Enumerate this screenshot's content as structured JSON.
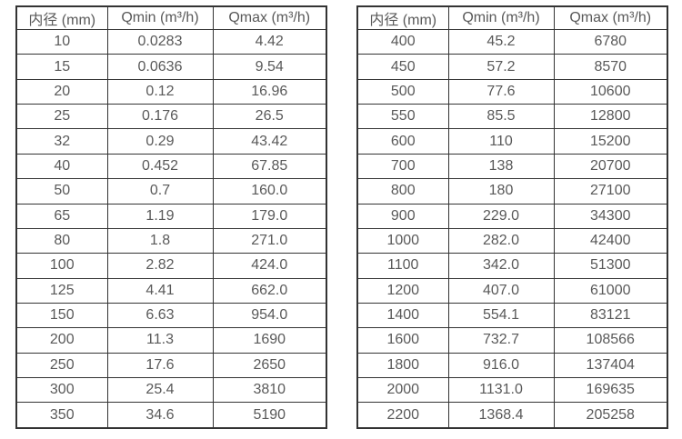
{
  "page": {
    "background": "#ffffff",
    "table_border_color": "#333333",
    "text_color": "#595959"
  },
  "chart_data": [
    {
      "type": "table",
      "title": "",
      "columns": [
        "内径 (mm)",
        "Qmin (m³/h)",
        "Qmax (m³/h)"
      ],
      "rows": [
        [
          "10",
          "0.0283",
          "4.42"
        ],
        [
          "15",
          "0.0636",
          "9.54"
        ],
        [
          "20",
          "0.12",
          "16.96"
        ],
        [
          "25",
          "0.176",
          "26.5"
        ],
        [
          "32",
          "0.29",
          "43.42"
        ],
        [
          "40",
          "0.452",
          "67.85"
        ],
        [
          "50",
          "0.7",
          "160.0"
        ],
        [
          "65",
          "1.19",
          "179.0"
        ],
        [
          "80",
          "1.8",
          "271.0"
        ],
        [
          "100",
          "2.82",
          "424.0"
        ],
        [
          "125",
          "4.41",
          "662.0"
        ],
        [
          "150",
          "6.63",
          "954.0"
        ],
        [
          "200",
          "11.3",
          "1690"
        ],
        [
          "250",
          "17.6",
          "2650"
        ],
        [
          "300",
          "25.4",
          "3810"
        ],
        [
          "350",
          "34.6",
          "5190"
        ]
      ]
    },
    {
      "type": "table",
      "title": "",
      "columns": [
        "内径 (mm)",
        "Qmin (m³/h)",
        "Qmax (m³/h)"
      ],
      "rows": [
        [
          "400",
          "45.2",
          "6780"
        ],
        [
          "450",
          "57.2",
          "8570"
        ],
        [
          "500",
          "77.6",
          "10600"
        ],
        [
          "550",
          "85.5",
          "12800"
        ],
        [
          "600",
          "110",
          "15200"
        ],
        [
          "700",
          "138",
          "20700"
        ],
        [
          "800",
          "180",
          "27100"
        ],
        [
          "900",
          "229.0",
          "34300"
        ],
        [
          "1000",
          "282.0",
          "42400"
        ],
        [
          "1100",
          "342.0",
          "51300"
        ],
        [
          "1200",
          "407.0",
          "61000"
        ],
        [
          "1400",
          "554.1",
          "83121"
        ],
        [
          "1600",
          "732.7",
          "108566"
        ],
        [
          "1800",
          "916.0",
          "137404"
        ],
        [
          "2000",
          "1131.0",
          "169635"
        ],
        [
          "2200",
          "1368.4",
          "205258"
        ]
      ]
    }
  ]
}
